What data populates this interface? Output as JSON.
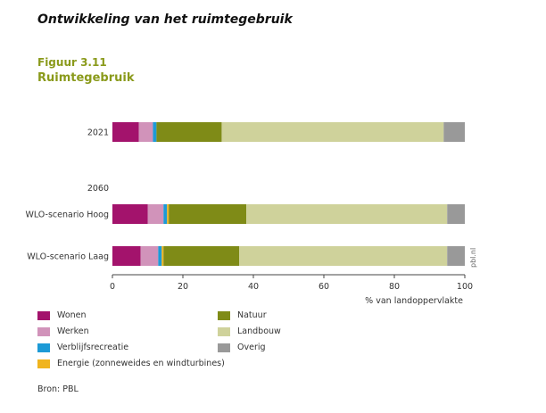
{
  "page": {
    "heading": "Ontwikkeling van het ruimtegebruik",
    "figure_label": "Figuur 3.11",
    "figure_title": "Ruimtegebruik",
    "source": "Bron: PBL"
  },
  "chart_data": {
    "type": "bar",
    "orientation": "horizontal",
    "stacked": true,
    "group_label": "2060",
    "categories": [
      "2021",
      "WLO-scenario Hoog",
      "WLO-scenario Laag"
    ],
    "series": [
      {
        "name": "Wonen",
        "color": "#a3136c",
        "values": [
          7.5,
          10,
          8
        ]
      },
      {
        "name": "Werken",
        "color": "#d193ba",
        "values": [
          4,
          4.5,
          5
        ]
      },
      {
        "name": "Verblijfsrecreatie",
        "color": "#1d9ad6",
        "values": [
          1,
          1,
          1
        ]
      },
      {
        "name": "Energie (zonneweides en windturbines)",
        "color": "#f0b41e",
        "values": [
          0,
          0.5,
          0.5
        ]
      },
      {
        "name": "Natuur",
        "color": "#7f8b17",
        "values": [
          18.5,
          22,
          21.5
        ]
      },
      {
        "name": "Landbouw",
        "color": "#cfd29b",
        "values": [
          63,
          57,
          59
        ]
      },
      {
        "name": "Overig",
        "color": "#999999",
        "values": [
          6,
          5,
          5
        ]
      }
    ],
    "x_ticks": [
      "0",
      "20",
      "40",
      "60",
      "80",
      "100"
    ],
    "xlabel": "% van landoppervlakte",
    "xlim": [
      0,
      100
    ],
    "watermark": "pbl.nl",
    "legend_position": "bottom",
    "grid": false
  }
}
